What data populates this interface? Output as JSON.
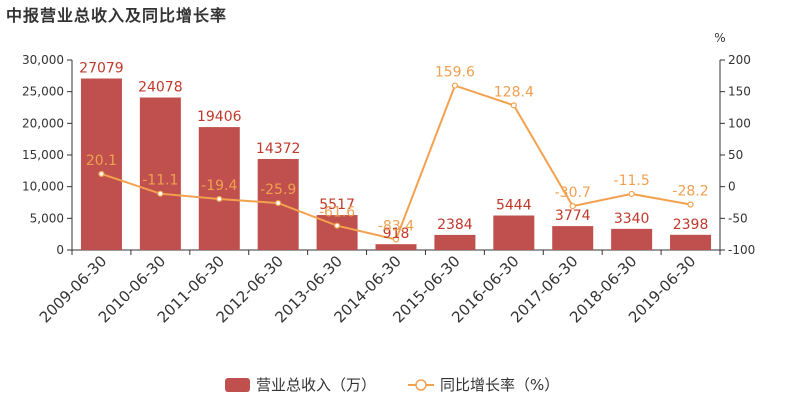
{
  "title": "中报营业总收入及同比增长率",
  "colors": {
    "bar": "#c0504d",
    "line": "#f3a14e",
    "axis": "#333333",
    "grid": "#e8e8e8"
  },
  "chart_data": {
    "type": "bar",
    "categories": [
      "2009-06-30",
      "2010-06-30",
      "2011-06-30",
      "2012-06-30",
      "2013-06-30",
      "2014-06-30",
      "2015-06-30",
      "2016-06-30",
      "2017-06-30",
      "2018-06-30",
      "2019-06-30"
    ],
    "series": [
      {
        "name": "营业总收入（万）",
        "type": "bar",
        "axis": "left",
        "values": [
          27079,
          24078,
          19406,
          14372,
          5517,
          918,
          2384,
          5444,
          3774,
          3340,
          2398
        ],
        "labels": [
          "27079",
          "24078",
          "19406",
          "14372",
          "5517",
          "918",
          "2384",
          "5444",
          "3774",
          "3340",
          "2398"
        ]
      },
      {
        "name": "同比增长率（%）",
        "type": "line",
        "axis": "right",
        "values": [
          20.1,
          -11.1,
          -19.4,
          -25.9,
          -61.6,
          -83.4,
          159.6,
          128.4,
          -30.7,
          -11.5,
          -28.2
        ],
        "labels": [
          "20.1",
          "-11.1",
          "-19.4",
          "-25.9",
          "-61.6",
          "-83.4",
          "159.6",
          "128.4",
          "-30.7",
          "-11.5",
          "-28.2"
        ]
      }
    ],
    "y_left": {
      "ylim": [
        0,
        30000
      ],
      "ticks": [
        "0",
        "5,000",
        "10,000",
        "15,000",
        "20,000",
        "25,000",
        "30,000"
      ],
      "tick_values": [
        0,
        5000,
        10000,
        15000,
        20000,
        25000,
        30000
      ]
    },
    "y_right": {
      "label": "%",
      "ylim": [
        -100,
        200
      ],
      "ticks": [
        "-100",
        "-50",
        "0",
        "50",
        "100",
        "150",
        "200"
      ],
      "tick_values": [
        -100,
        -50,
        0,
        50,
        100,
        150,
        200
      ]
    },
    "grid": false,
    "legend_position": "bottom-center"
  }
}
